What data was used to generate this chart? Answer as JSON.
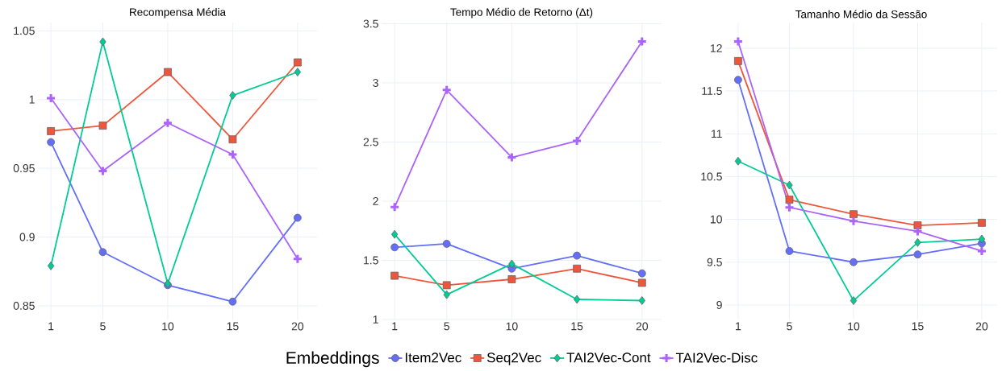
{
  "chart_data": [
    {
      "type": "line",
      "title": "Recompensa Média",
      "x": [
        1,
        5,
        10,
        15,
        20
      ],
      "xlim": [
        0,
        21.5
      ],
      "xticks": [
        1,
        5,
        10,
        15,
        20
      ],
      "ylim": [
        0.84,
        1.056
      ],
      "yticks": [
        0.85,
        0.9,
        0.95,
        1,
        1.05
      ],
      "grid": true,
      "series": [
        {
          "color": "#636efa",
          "marker": "circle",
          "values": [
            0.969,
            0.889,
            0.865,
            0.853,
            0.914
          ]
        },
        {
          "color": "#ef553b",
          "marker": "square",
          "values": [
            0.977,
            0.981,
            1.02,
            0.971,
            1.027
          ]
        },
        {
          "color": "#00cc96",
          "marker": "diamond",
          "values": [
            0.879,
            1.042,
            0.866,
            1.003,
            1.02
          ]
        },
        {
          "color": "#ab63fa",
          "marker": "cross",
          "values": [
            1.001,
            0.948,
            0.983,
            0.96,
            0.884
          ]
        }
      ]
    },
    {
      "type": "line",
      "title": "Tempo Médio de Retorno (Δt)",
      "x": [
        1,
        5,
        10,
        15,
        20
      ],
      "xlim": [
        0,
        21.5
      ],
      "xticks": [
        1,
        5,
        10,
        15,
        20
      ],
      "ylim": [
        1,
        3.51
      ],
      "yticks": [
        1,
        1.5,
        2,
        2.5,
        3,
        3.5
      ],
      "grid": true,
      "legend": "bottom",
      "legend_title": "Embeddings",
      "series": [
        {
          "name": "Item2Vec",
          "color": "#636efa",
          "marker": "circle",
          "values": [
            1.61,
            1.64,
            1.43,
            1.54,
            1.39
          ]
        },
        {
          "name": "Seq2Vec",
          "color": "#ef553b",
          "marker": "square",
          "values": [
            1.37,
            1.29,
            1.34,
            1.43,
            1.31
          ]
        },
        {
          "name": "TAI2Vec-Cont",
          "color": "#00cc96",
          "marker": "diamond",
          "values": [
            1.72,
            1.21,
            1.47,
            1.17,
            1.16
          ]
        },
        {
          "name": "TAI2Vec-Disc",
          "color": "#ab63fa",
          "marker": "cross",
          "values": [
            1.95,
            2.94,
            2.37,
            2.51,
            3.35
          ]
        }
      ]
    },
    {
      "type": "line",
      "title": "Tamanho Médio da Sessão",
      "x": [
        1,
        5,
        10,
        15,
        20
      ],
      "xlim": [
        0,
        21.2
      ],
      "xticks": [
        1,
        5,
        10,
        15,
        20
      ],
      "ylim": [
        8.83,
        12.3
      ],
      "yticks": [
        9,
        9.5,
        10,
        10.5,
        11,
        11.5,
        12
      ],
      "grid": true,
      "series": [
        {
          "color": "#636efa",
          "marker": "circle",
          "values": [
            11.63,
            9.63,
            9.5,
            9.59,
            9.72
          ]
        },
        {
          "color": "#ef553b",
          "marker": "square",
          "values": [
            11.85,
            10.23,
            10.06,
            9.93,
            9.96
          ]
        },
        {
          "color": "#00cc96",
          "marker": "diamond",
          "values": [
            10.68,
            10.4,
            9.05,
            9.73,
            9.77
          ]
        },
        {
          "color": "#ab63fa",
          "marker": "cross",
          "values": [
            12.08,
            10.14,
            9.98,
            9.86,
            9.63
          ]
        }
      ]
    }
  ]
}
